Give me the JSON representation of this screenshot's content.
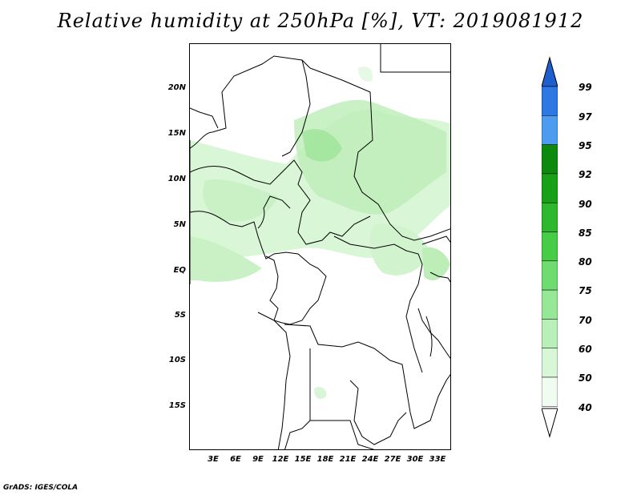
{
  "title": "Relative humidity at 250hPa [%], VT: 2019081912",
  "credit": "GrADS: IGES/COLA",
  "lat_labels": [
    "20N",
    "15N",
    "10N",
    "5N",
    "EQ",
    "5S",
    "10S",
    "15S"
  ],
  "lon_labels": [
    "3E",
    "6E",
    "9E",
    "12E",
    "15E",
    "18E",
    "21E",
    "24E",
    "27E",
    "30E",
    "33E"
  ],
  "colorbar": {
    "labels": [
      "99",
      "97",
      "95",
      "92",
      "90",
      "85",
      "80",
      "75",
      "70",
      "60",
      "50",
      "40"
    ],
    "colors": [
      "#1e5fd0",
      "#2d78e2",
      "#4d9cf0",
      "#0d8a0d",
      "#19a019",
      "#2db82d",
      "#46cc46",
      "#6edc6e",
      "#96e896",
      "#b8f0b8",
      "#d7f7d7",
      "#effcef"
    ]
  },
  "colors": {
    "shade_light": "#d9f6d6",
    "shade_mid": "#bdeeb8",
    "shade_dark": "#9ee39a"
  }
}
